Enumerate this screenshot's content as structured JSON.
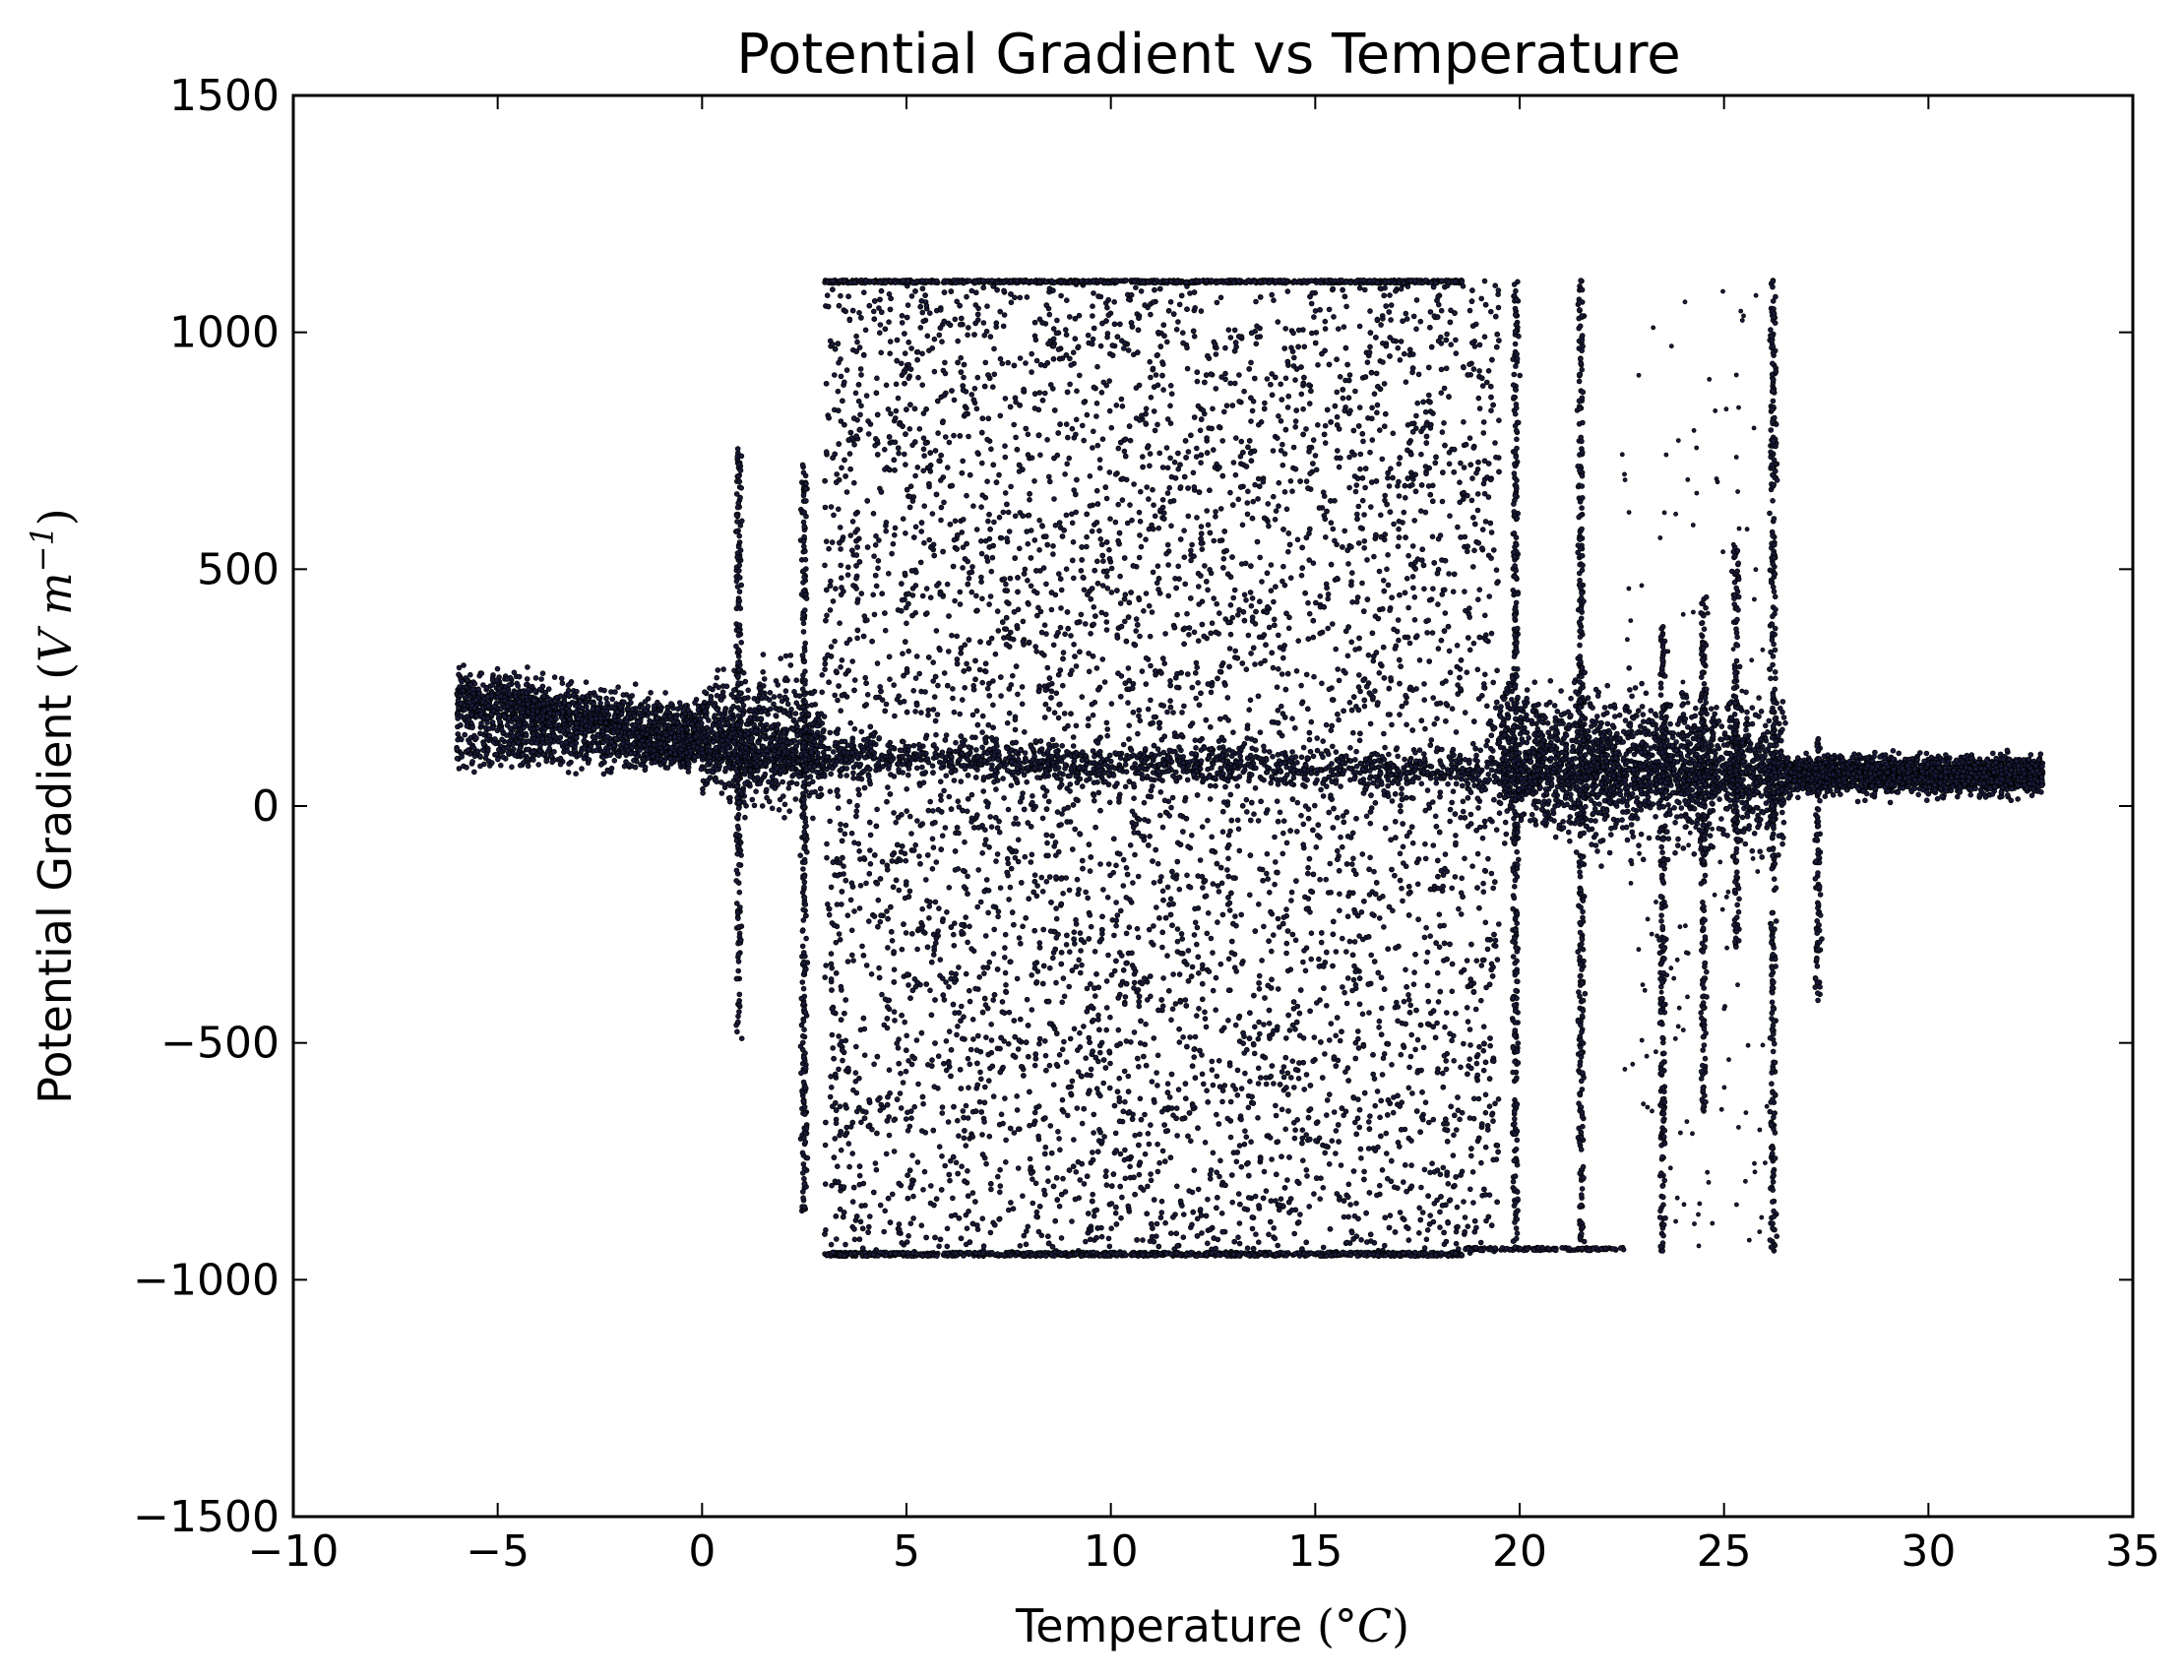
{
  "chart_data": {
    "type": "scatter",
    "title": "Potential Gradient vs Temperature",
    "xlabel": "Temperature",
    "xlabel_unit": "°C",
    "ylabel": "Potential Gradient",
    "ylabel_unit": "V m",
    "ylabel_unit_exponent": "−1",
    "xlim": [
      -10,
      35
    ],
    "ylim": [
      -1500,
      1500
    ],
    "xticks": [
      -10,
      -5,
      0,
      5,
      10,
      15,
      20,
      25,
      30,
      35
    ],
    "xtick_labels": [
      "−10",
      "−5",
      "0",
      "5",
      "10",
      "15",
      "20",
      "25",
      "30",
      "35"
    ],
    "yticks": [
      -1500,
      -1000,
      -500,
      0,
      500,
      1000,
      1500
    ],
    "ytick_labels": [
      "−1500",
      "−1000",
      "−500",
      "0",
      "500",
      "1000",
      "1500"
    ],
    "grid": false,
    "legend": "none",
    "marker_color": "#1a1a3a",
    "marker_edge_color": "#000000",
    "saturation_upper": 1110,
    "saturation_lower": -950,
    "clusters": [
      {
        "t_min": -6.0,
        "t_max": 0.0,
        "pg_center_start": 220,
        "pg_center_end": 150,
        "spread": 110
      },
      {
        "t_min": 0.0,
        "t_max": 3.0,
        "pg_center_start": 150,
        "pg_center_end": 130,
        "spread": 220
      },
      {
        "t_min": 3.0,
        "t_max": 19.5,
        "pg_center_start": 130,
        "pg_center_end": 100,
        "spread": 1060
      },
      {
        "t_min": 19.5,
        "t_max": 26.5,
        "pg_center_start": 100,
        "pg_center_end": 70,
        "spread": 260
      },
      {
        "t_min": 26.5,
        "t_max": 32.8,
        "pg_center_start": 70,
        "pg_center_end": 70,
        "spread": 60
      }
    ],
    "spikes": [
      {
        "t": 0.9,
        "pg_min": -510,
        "pg_max": 770
      },
      {
        "t": 2.5,
        "pg_min": -870,
        "pg_max": 730
      },
      {
        "t": 19.9,
        "pg_min": -940,
        "pg_max": 1110
      },
      {
        "t": 21.5,
        "pg_min": -940,
        "pg_max": 1110
      },
      {
        "t": 23.5,
        "pg_min": -940,
        "pg_max": 380
      },
      {
        "t": 24.5,
        "pg_min": -650,
        "pg_max": 450
      },
      {
        "t": 25.3,
        "pg_min": -300,
        "pg_max": 550
      },
      {
        "t": 26.2,
        "pg_min": -940,
        "pg_max": 1110
      },
      {
        "t": 27.3,
        "pg_min": -420,
        "pg_max": 150
      }
    ]
  }
}
